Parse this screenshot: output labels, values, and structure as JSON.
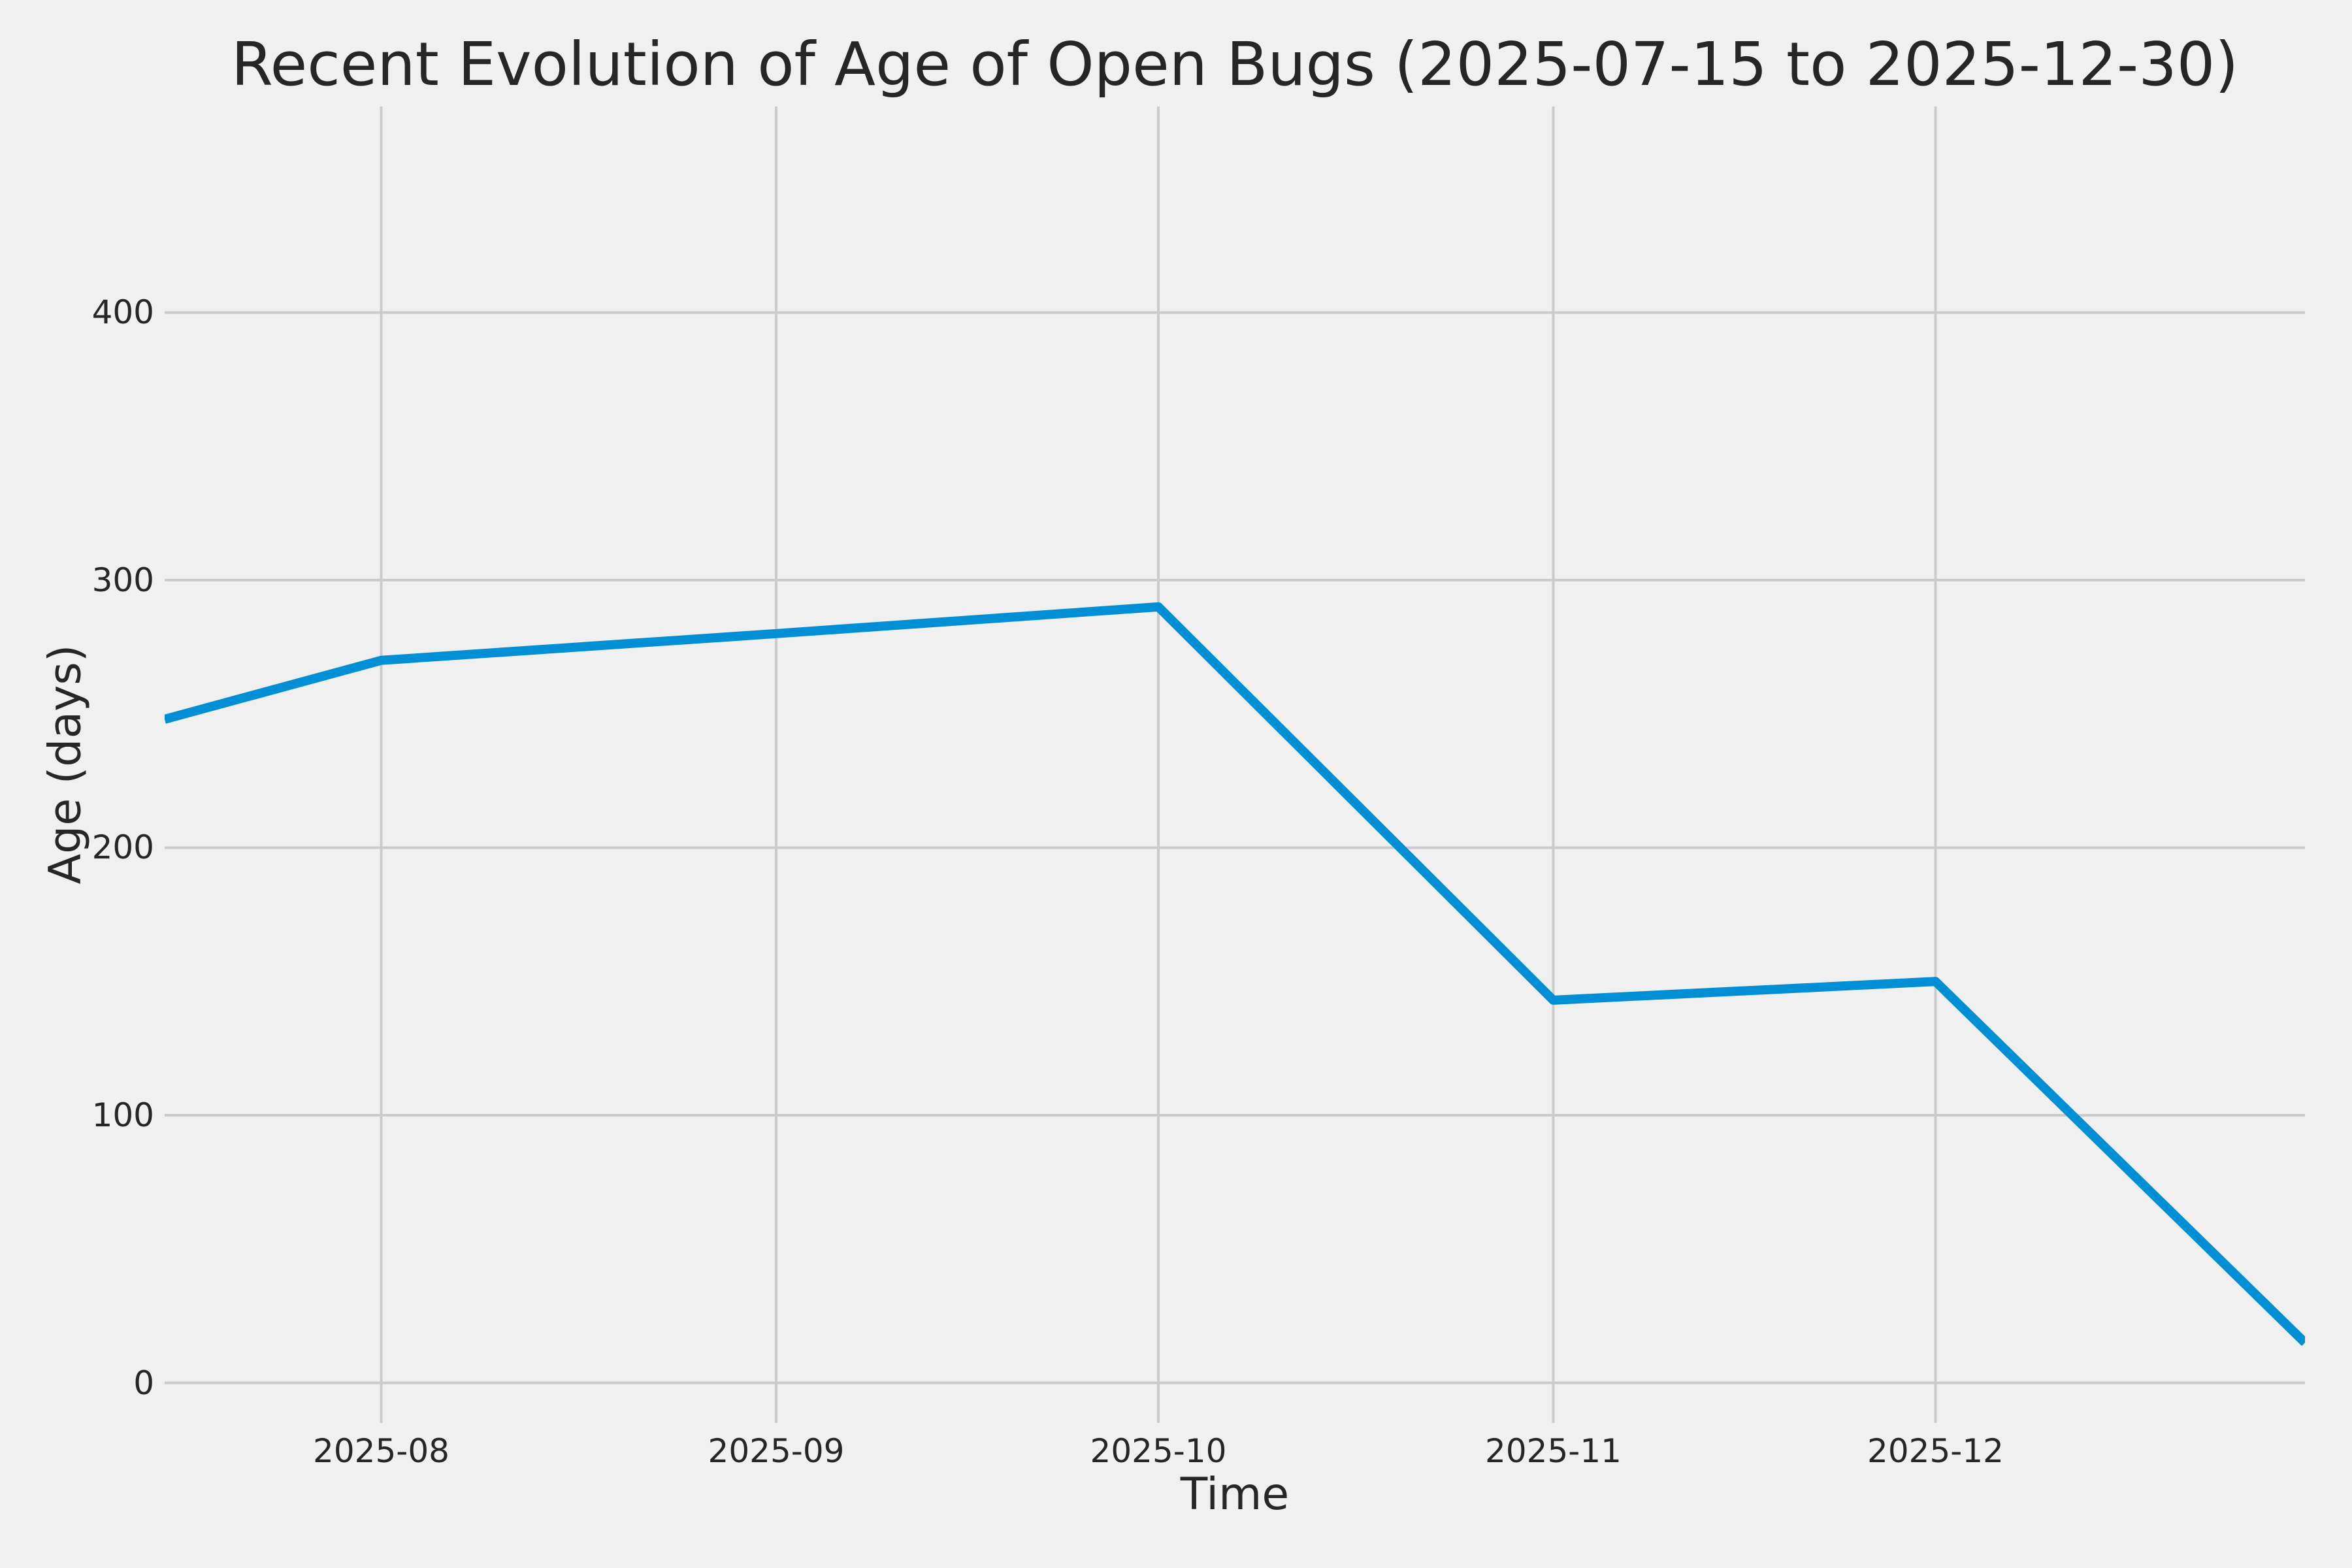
{
  "figure": {
    "background_color": "#f0f0f0",
    "grid_color": "#cbcbcb",
    "line_color": "#008fd5",
    "text_color": "#262626"
  },
  "chart_data": {
    "type": "line",
    "title": "Recent Evolution of Age of Open Bugs (2025-07-15 to 2025-12-30)",
    "xlabel": "Time",
    "ylabel": "Age (days)",
    "x": [
      "2025-07-15",
      "2025-08-01",
      "2025-09-01",
      "2025-10-01",
      "2025-11-01",
      "2025-12-01",
      "2025-12-30"
    ],
    "series": [
      {
        "name": "Age of open bugs",
        "values": [
          248,
          270,
          280,
          290,
          143,
          150,
          15
        ]
      }
    ],
    "x_range": [
      "2025-07-15",
      "2025-12-30"
    ],
    "ylim": [
      -15,
      477
    ],
    "x_ticks": [
      {
        "label": "2025-08",
        "date": "2025-08-01"
      },
      {
        "label": "2025-09",
        "date": "2025-09-01"
      },
      {
        "label": "2025-10",
        "date": "2025-10-01"
      },
      {
        "label": "2025-11",
        "date": "2025-11-01"
      },
      {
        "label": "2025-12",
        "date": "2025-12-01"
      }
    ],
    "y_ticks": [
      0,
      100,
      200,
      300,
      400
    ],
    "grid": true,
    "legend": false
  }
}
